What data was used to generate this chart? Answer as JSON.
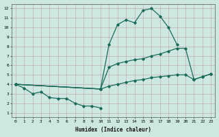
{
  "xlabel": "Humidex (Indice chaleur)",
  "bg_color": "#cce8e0",
  "line_color": "#1a6b5a",
  "xlim": [
    -0.5,
    23.5
  ],
  "ylim": [
    0.5,
    12.5
  ],
  "xticks": [
    0,
    1,
    2,
    3,
    4,
    5,
    6,
    7,
    8,
    9,
    10,
    11,
    12,
    13,
    14,
    15,
    16,
    17,
    18,
    19,
    20,
    21,
    22,
    23
  ],
  "yticks": [
    1,
    2,
    3,
    4,
    5,
    6,
    7,
    8,
    9,
    10,
    11,
    12
  ],
  "series": [
    {
      "x": [
        0,
        1,
        2,
        3,
        4,
        5,
        6,
        7,
        8,
        9,
        10
      ],
      "y": [
        4.0,
        3.6,
        3.0,
        3.2,
        2.6,
        2.5,
        2.5,
        2.0,
        1.7,
        1.7,
        1.5
      ]
    },
    {
      "x": [
        0,
        10,
        11,
        12,
        13,
        14,
        15,
        16,
        17,
        18,
        19
      ],
      "y": [
        4.0,
        3.5,
        8.2,
        10.3,
        10.8,
        10.5,
        11.8,
        12.0,
        11.2,
        10.0,
        8.2
      ]
    },
    {
      "x": [
        0,
        10,
        11,
        12,
        13,
        14,
        15,
        16,
        17,
        18,
        19,
        20,
        21,
        22,
        23
      ],
      "y": [
        4.0,
        3.5,
        5.8,
        6.2,
        6.4,
        6.6,
        6.7,
        7.0,
        7.2,
        7.5,
        7.8,
        7.8,
        4.5,
        4.8,
        5.1
      ]
    },
    {
      "x": [
        0,
        10,
        11,
        12,
        13,
        14,
        15,
        16,
        17,
        18,
        19,
        20,
        21,
        22,
        23
      ],
      "y": [
        4.0,
        3.5,
        3.8,
        4.0,
        4.2,
        4.4,
        4.5,
        4.7,
        4.8,
        4.9,
        5.0,
        5.0,
        4.5,
        4.8,
        5.1
      ]
    }
  ]
}
